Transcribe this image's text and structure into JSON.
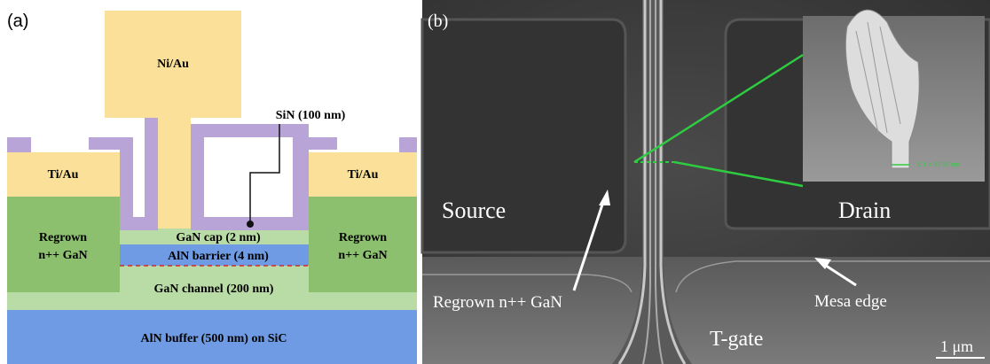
{
  "panel_a": {
    "label": "(a)",
    "gate": "Ni/Au",
    "sin": "SiN (100 nm)",
    "left_contact": "Ti/Au",
    "right_contact": "Ti/Au",
    "left_regrown": [
      "Regrown",
      "n++ GaN"
    ],
    "right_regrown": [
      "Regrown",
      "n++ GaN"
    ],
    "cap": "GaN cap (2 nm)",
    "barrier": "AlN barrier (4 nm)",
    "channel": "GaN channel (200 nm)",
    "buffer": "AlN buffer (500 nm) on SiC"
  },
  "panel_b": {
    "label": "(b)",
    "source": "Source",
    "drain": "Drain",
    "regrown": "Regrown n++ GaN",
    "gate": "T-gate",
    "mesa": "Mesa edge",
    "scale": "1 μm",
    "inset_measure": "V 1 = 60.92 nm"
  }
}
